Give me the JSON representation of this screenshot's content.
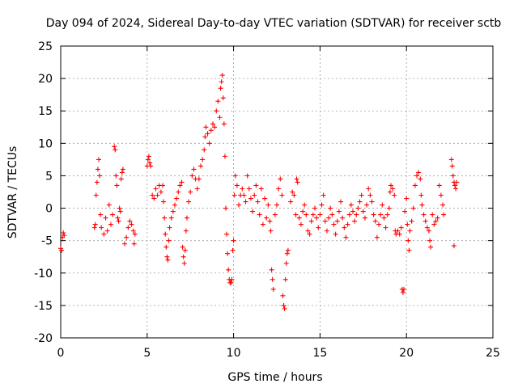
{
  "chart_data": {
    "type": "scatter",
    "title": "Day 094 of 2024, Sidereal Day-to-day VTEC variation (SDTVAR) for receiver sctb",
    "xlabel": "GPS time / hours",
    "ylabel": "SDTVAR / TECUs",
    "xlim": [
      0,
      25
    ],
    "ylim": [
      -20,
      25
    ],
    "xticks": [
      0,
      5,
      10,
      15,
      20,
      25
    ],
    "yticks": [
      -20,
      -15,
      -10,
      -5,
      0,
      5,
      10,
      15,
      20,
      25
    ],
    "xtick_labels": [
      "0",
      "5",
      "10",
      "15",
      "20",
      "25"
    ],
    "ytick_labels": [
      "-20",
      "-15",
      "-10",
      "-5",
      "0",
      "5",
      "10",
      "15",
      "20",
      "25"
    ],
    "grid": true,
    "marker": "plus",
    "color": "#ff0000",
    "series": [
      {
        "name": "SDTVAR",
        "points": [
          [
            0.0,
            -6.2
          ],
          [
            0.05,
            -6.5
          ],
          [
            0.1,
            -4.5
          ],
          [
            0.15,
            -3.8
          ],
          [
            0.2,
            -4.2
          ],
          [
            1.95,
            -3.0
          ],
          [
            2.0,
            -2.5
          ],
          [
            2.05,
            2.0
          ],
          [
            2.1,
            4.0
          ],
          [
            2.15,
            6.0
          ],
          [
            2.2,
            7.5
          ],
          [
            2.25,
            5.0
          ],
          [
            2.3,
            -1.0
          ],
          [
            2.35,
            -3.0
          ],
          [
            2.5,
            -4.0
          ],
          [
            2.6,
            -1.5
          ],
          [
            2.7,
            -3.5
          ],
          [
            2.8,
            0.5
          ],
          [
            2.9,
            -2.5
          ],
          [
            3.0,
            -1.0
          ],
          [
            3.1,
            9.5
          ],
          [
            3.15,
            9.0
          ],
          [
            3.2,
            5.0
          ],
          [
            3.25,
            3.5
          ],
          [
            3.3,
            -1.5
          ],
          [
            3.35,
            -2.0
          ],
          [
            3.4,
            0.0
          ],
          [
            3.45,
            -0.5
          ],
          [
            3.5,
            4.5
          ],
          [
            3.55,
            5.5
          ],
          [
            3.6,
            6.0
          ],
          [
            3.7,
            -5.5
          ],
          [
            3.8,
            -4.5
          ],
          [
            3.9,
            -3.0
          ],
          [
            4.0,
            -2.0
          ],
          [
            4.1,
            -2.5
          ],
          [
            4.2,
            -3.5
          ],
          [
            4.25,
            -5.5
          ],
          [
            4.3,
            -4.0
          ],
          [
            5.0,
            6.5
          ],
          [
            5.05,
            7.5
          ],
          [
            5.1,
            8.0
          ],
          [
            5.15,
            7.0
          ],
          [
            5.2,
            6.5
          ],
          [
            5.3,
            2.0
          ],
          [
            5.4,
            1.5
          ],
          [
            5.5,
            3.0
          ],
          [
            5.6,
            2.0
          ],
          [
            5.7,
            3.5
          ],
          [
            5.8,
            2.5
          ],
          [
            5.9,
            3.5
          ],
          [
            5.95,
            1.0
          ],
          [
            6.0,
            -1.5
          ],
          [
            6.05,
            -4.0
          ],
          [
            6.1,
            -6.0
          ],
          [
            6.15,
            -7.5
          ],
          [
            6.2,
            -8.0
          ],
          [
            6.25,
            -5.0
          ],
          [
            6.3,
            -3.0
          ],
          [
            6.4,
            -1.5
          ],
          [
            6.5,
            -0.5
          ],
          [
            6.6,
            0.5
          ],
          [
            6.7,
            1.5
          ],
          [
            6.8,
            2.5
          ],
          [
            6.9,
            3.5
          ],
          [
            7.0,
            4.0
          ],
          [
            7.05,
            -6.0
          ],
          [
            7.1,
            -7.5
          ],
          [
            7.15,
            -8.5
          ],
          [
            7.2,
            -6.5
          ],
          [
            7.25,
            -3.5
          ],
          [
            7.3,
            -1.5
          ],
          [
            7.4,
            1.0
          ],
          [
            7.5,
            2.5
          ],
          [
            7.6,
            5.0
          ],
          [
            7.7,
            6.0
          ],
          [
            7.8,
            4.5
          ],
          [
            7.9,
            3.0
          ],
          [
            8.0,
            4.5
          ],
          [
            8.1,
            6.5
          ],
          [
            8.2,
            7.5
          ],
          [
            8.3,
            9.0
          ],
          [
            8.35,
            11.0
          ],
          [
            8.4,
            12.5
          ],
          [
            8.5,
            11.5
          ],
          [
            8.6,
            10.0
          ],
          [
            8.7,
            12.0
          ],
          [
            8.8,
            13.0
          ],
          [
            8.9,
            12.5
          ],
          [
            9.0,
            15.0
          ],
          [
            9.1,
            16.5
          ],
          [
            9.2,
            14.0
          ],
          [
            9.25,
            18.5
          ],
          [
            9.3,
            19.5
          ],
          [
            9.35,
            20.5
          ],
          [
            9.4,
            17.0
          ],
          [
            9.45,
            13.0
          ],
          [
            9.5,
            8.0
          ],
          [
            9.55,
            0.0
          ],
          [
            9.6,
            -4.0
          ],
          [
            9.65,
            -7.0
          ],
          [
            9.7,
            -9.5
          ],
          [
            9.75,
            -11.0
          ],
          [
            9.8,
            -11.5
          ],
          [
            9.85,
            -11.5
          ],
          [
            9.9,
            -11.0
          ],
          [
            9.95,
            -6.5
          ],
          [
            10.0,
            -5.0
          ],
          [
            10.05,
            2.0
          ],
          [
            10.1,
            5.0
          ],
          [
            10.2,
            3.5
          ],
          [
            10.3,
            0.5
          ],
          [
            10.4,
            2.0
          ],
          [
            10.5,
            3.0
          ],
          [
            10.6,
            2.0
          ],
          [
            10.7,
            1.0
          ],
          [
            10.8,
            5.0
          ],
          [
            10.9,
            3.0
          ],
          [
            11.0,
            1.5
          ],
          [
            11.1,
            -0.5
          ],
          [
            11.2,
            2.0
          ],
          [
            11.3,
            3.5
          ],
          [
            11.4,
            1.0
          ],
          [
            11.5,
            -1.0
          ],
          [
            11.6,
            3.0
          ],
          [
            11.7,
            -2.5
          ],
          [
            11.8,
            1.5
          ],
          [
            11.9,
            -1.5
          ],
          [
            12.0,
            0.5
          ],
          [
            12.1,
            -2.0
          ],
          [
            12.15,
            -3.5
          ],
          [
            12.2,
            -9.5
          ],
          [
            12.25,
            -11.0
          ],
          [
            12.3,
            -12.5
          ],
          [
            12.4,
            -1.0
          ],
          [
            12.5,
            0.5
          ],
          [
            12.6,
            3.0
          ],
          [
            12.7,
            4.5
          ],
          [
            12.8,
            2.0
          ],
          [
            12.85,
            -13.5
          ],
          [
            12.9,
            -15.0
          ],
          [
            12.95,
            -15.5
          ],
          [
            13.0,
            -11.0
          ],
          [
            13.05,
            -8.5
          ],
          [
            13.1,
            -7.0
          ],
          [
            13.15,
            -6.5
          ],
          [
            13.3,
            1.0
          ],
          [
            13.4,
            2.5
          ],
          [
            13.5,
            2.0
          ],
          [
            13.6,
            -1.0
          ],
          [
            13.65,
            4.5
          ],
          [
            13.7,
            4.0
          ],
          [
            13.8,
            -1.5
          ],
          [
            13.9,
            -2.5
          ],
          [
            14.0,
            -0.5
          ],
          [
            14.1,
            0.5
          ],
          [
            14.2,
            -1.0
          ],
          [
            14.3,
            -3.5
          ],
          [
            14.4,
            -4.0
          ],
          [
            14.5,
            -2.0
          ],
          [
            14.6,
            -1.0
          ],
          [
            14.7,
            0.0
          ],
          [
            14.8,
            -1.5
          ],
          [
            14.9,
            -3.0
          ],
          [
            15.0,
            -1.0
          ],
          [
            15.1,
            0.5
          ],
          [
            15.2,
            2.0
          ],
          [
            15.3,
            -2.0
          ],
          [
            15.4,
            -3.5
          ],
          [
            15.5,
            -1.5
          ],
          [
            15.6,
            0.0
          ],
          [
            15.7,
            -1.0
          ],
          [
            15.8,
            -2.5
          ],
          [
            15.9,
            -4.0
          ],
          [
            16.0,
            -2.0
          ],
          [
            16.1,
            -0.5
          ],
          [
            16.2,
            1.0
          ],
          [
            16.3,
            -1.5
          ],
          [
            16.4,
            -3.0
          ],
          [
            16.5,
            -4.5
          ],
          [
            16.6,
            -2.5
          ],
          [
            16.7,
            -1.0
          ],
          [
            16.8,
            0.5
          ],
          [
            16.9,
            -0.5
          ],
          [
            17.0,
            -2.0
          ],
          [
            17.1,
            -1.0
          ],
          [
            17.2,
            0.0
          ],
          [
            17.3,
            1.0
          ],
          [
            17.4,
            2.0
          ],
          [
            17.5,
            -0.5
          ],
          [
            17.6,
            -1.5
          ],
          [
            17.7,
            0.5
          ],
          [
            17.8,
            3.0
          ],
          [
            17.9,
            2.0
          ],
          [
            18.0,
            1.0
          ],
          [
            18.1,
            -1.0
          ],
          [
            18.2,
            -2.0
          ],
          [
            18.3,
            -4.5
          ],
          [
            18.4,
            -2.5
          ],
          [
            18.5,
            -1.0
          ],
          [
            18.6,
            0.5
          ],
          [
            18.7,
            -1.5
          ],
          [
            18.8,
            -3.0
          ],
          [
            18.9,
            -1.0
          ],
          [
            19.0,
            0.0
          ],
          [
            19.05,
            2.5
          ],
          [
            19.1,
            3.5
          ],
          [
            19.2,
            3.0
          ],
          [
            19.3,
            2.0
          ],
          [
            19.35,
            -3.5
          ],
          [
            19.4,
            -4.0
          ],
          [
            19.5,
            -3.5
          ],
          [
            19.6,
            -4.0
          ],
          [
            19.7,
            -3.0
          ],
          [
            19.75,
            -12.5
          ],
          [
            19.8,
            -13.0
          ],
          [
            19.85,
            -12.5
          ],
          [
            19.9,
            -0.5
          ],
          [
            20.0,
            1.5
          ],
          [
            20.05,
            -2.5
          ],
          [
            20.1,
            -5.0
          ],
          [
            20.15,
            -6.5
          ],
          [
            20.2,
            -3.5
          ],
          [
            20.3,
            -2.0
          ],
          [
            20.4,
            0.0
          ],
          [
            20.5,
            3.5
          ],
          [
            20.6,
            5.0
          ],
          [
            20.7,
            5.5
          ],
          [
            20.8,
            4.5
          ],
          [
            20.85,
            2.0
          ],
          [
            20.9,
            0.5
          ],
          [
            21.0,
            -1.0
          ],
          [
            21.1,
            -2.0
          ],
          [
            21.2,
            -3.0
          ],
          [
            21.3,
            -3.5
          ],
          [
            21.35,
            -5.0
          ],
          [
            21.4,
            -6.0
          ],
          [
            21.5,
            -1.0
          ],
          [
            21.6,
            -2.5
          ],
          [
            21.7,
            -2.0
          ],
          [
            21.8,
            -1.5
          ],
          [
            21.9,
            3.5
          ],
          [
            22.0,
            2.0
          ],
          [
            22.1,
            0.5
          ],
          [
            22.15,
            -1.0
          ],
          [
            22.6,
            7.5
          ],
          [
            22.65,
            6.5
          ],
          [
            22.7,
            5.0
          ],
          [
            22.75,
            4.0
          ],
          [
            22.8,
            3.5
          ],
          [
            22.85,
            3.0
          ],
          [
            22.9,
            4.0
          ],
          [
            22.75,
            -5.8
          ]
        ]
      }
    ]
  }
}
